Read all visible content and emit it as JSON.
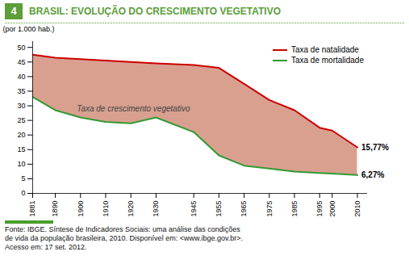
{
  "chart_data": {
    "type": "line",
    "title": "BRASIL: EVOLUÇÃO DO CRESCIMENTO VEGETATIVO",
    "title_number": "4",
    "ylabel": "(por 1.000 hab.)",
    "x": [
      1881,
      1890,
      1900,
      1910,
      1920,
      1930,
      1945,
      1955,
      1965,
      1975,
      1985,
      1995,
      2000,
      2010
    ],
    "series": [
      {
        "name": "Taxa de natalidade",
        "color": "#cc0000",
        "values": [
          47.5,
          46.5,
          46.0,
          45.5,
          45.0,
          44.5,
          44.0,
          43.0,
          37.5,
          32.0,
          28.5,
          22.5,
          21.5,
          15.77
        ],
        "value_labels": [
          null,
          null,
          null,
          null,
          null,
          null,
          null,
          null,
          null,
          null,
          null,
          null,
          null,
          "15,77%"
        ]
      },
      {
        "name": "Taxa de mortalidade",
        "color": "#339933",
        "values": [
          33.0,
          28.5,
          26.0,
          24.5,
          24.0,
          26.0,
          21.0,
          13.0,
          9.5,
          8.5,
          7.5,
          7.0,
          6.8,
          6.27
        ],
        "value_labels": [
          null,
          null,
          null,
          null,
          null,
          null,
          null,
          null,
          null,
          null,
          null,
          null,
          null,
          "6,27%"
        ]
      }
    ],
    "color": "#d9a090",
    "annotations": [
      {
        "text": "Taxa de crescimento vegetativo",
        "x": 1921,
        "y": 29
      }
    ],
    "xlim": [
      1881,
      2014
    ],
    "xticks": [
      1881,
      1890,
      1900,
      1910,
      1920,
      1930,
      1945,
      1955,
      1965,
      1975,
      1985,
      1995,
      2000,
      2010
    ],
    "ylim": [
      0,
      52
    ],
    "yticks": [
      0,
      5,
      10,
      15,
      20,
      25,
      30,
      35,
      40,
      45,
      50
    ],
    "grid": false,
    "legend": "upper right",
    "source": [
      "Fonte: IBGE. Síntese de Indicadores Sociais: uma análise das condições",
      "de vida da população brasileira, 2010. Disponível em: <www.ibge.gov.br>.",
      "Acesso em: 17 set. 2012."
    ]
  }
}
